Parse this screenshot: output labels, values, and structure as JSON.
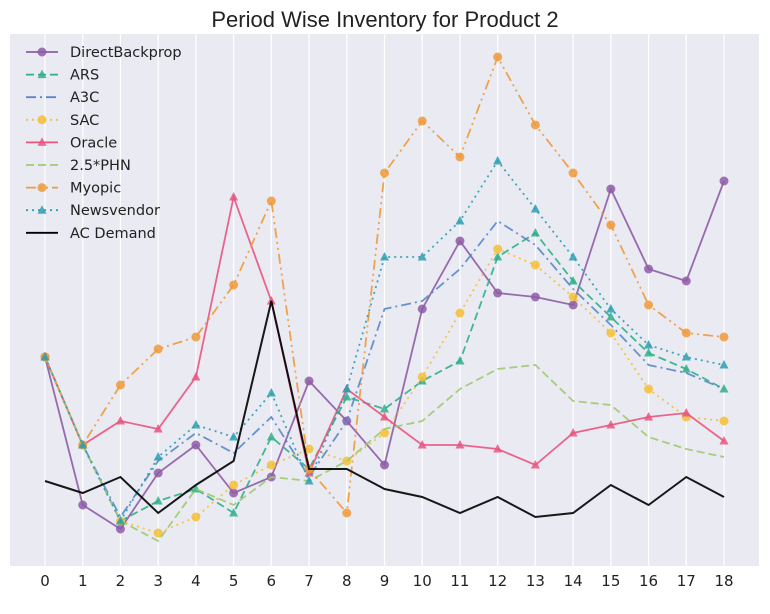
{
  "chart_data": {
    "type": "line",
    "title": "Period Wise Inventory for Product 2",
    "xlabel": "",
    "ylabel": "",
    "x": [
      0,
      1,
      2,
      3,
      4,
      5,
      6,
      7,
      8,
      9,
      10,
      11,
      12,
      13,
      14,
      15,
      16,
      17,
      18
    ],
    "ylim": [
      0,
      130
    ],
    "y_ticks_shown": false,
    "grid": "vertical",
    "legend_placement": "top-left",
    "series": [
      {
        "name": "DirectBackprop",
        "color": "#8e5ca6",
        "dash": "solid",
        "marker": "circle",
        "values": [
          52,
          15,
          9,
          23,
          30,
          18,
          22,
          46,
          36,
          25,
          64,
          81,
          68,
          67,
          65,
          94,
          74,
          71,
          96
        ]
      },
      {
        "name": "ARS",
        "color": "#2fb08a",
        "dash": "dashed",
        "marker": "triangle",
        "values": [
          52,
          30,
          11,
          16,
          19,
          13,
          32,
          24,
          42,
          39,
          46,
          51,
          77,
          83,
          71,
          62,
          53,
          49,
          44
        ]
      },
      {
        "name": "A3C",
        "color": "#5a88c6",
        "dash": "dashdot",
        "marker": "none",
        "values": [
          52,
          30,
          12,
          26,
          33,
          28,
          37,
          22,
          36,
          64,
          66,
          74,
          86,
          80,
          69,
          60,
          50,
          48,
          44
        ]
      },
      {
        "name": "SAC",
        "color": "#f5c036",
        "dash": "dotted",
        "marker": "circle",
        "values": [
          52,
          30,
          11,
          8,
          12,
          20,
          25,
          29,
          26,
          33,
          47,
          63,
          79,
          75,
          67,
          58,
          44,
          37,
          36
        ]
      },
      {
        "name": "Oracle",
        "color": "#e9557f",
        "dash": "solid",
        "marker": "triangle",
        "values": [
          52,
          30,
          36,
          34,
          47,
          92,
          66,
          23,
          44,
          37,
          30,
          30,
          29,
          25,
          33,
          35,
          37,
          38,
          31
        ]
      },
      {
        "name": "2.5*PHN",
        "color": "#9ccb6e",
        "dash": "dashed",
        "marker": "none",
        "values": [
          52,
          30,
          11,
          6,
          19,
          15,
          22,
          21,
          26,
          34,
          36,
          44,
          49,
          50,
          41,
          40,
          32,
          29,
          27
        ]
      },
      {
        "name": "Myopic",
        "color": "#ef9a3a",
        "dash": "dashdotdot",
        "marker": "circle",
        "values": [
          52,
          30,
          45,
          54,
          57,
          70,
          91,
          24,
          13,
          98,
          111,
          102,
          127,
          110,
          98,
          85,
          65,
          58,
          57
        ]
      },
      {
        "name": "Newsvendor",
        "color": "#2a9fb2",
        "dash": "dotted",
        "marker": "triangle",
        "values": [
          52,
          30,
          11,
          27,
          35,
          32,
          43,
          21,
          44,
          77,
          77,
          86,
          101,
          89,
          77,
          64,
          55,
          52,
          50
        ]
      },
      {
        "name": "AC Demand",
        "color": "#000000",
        "dash": "solid",
        "marker": "none",
        "values": [
          21,
          18,
          22,
          13,
          20,
          26,
          66,
          24,
          24,
          19,
          17,
          13,
          17,
          12,
          13,
          20,
          15,
          22,
          17
        ]
      }
    ]
  }
}
